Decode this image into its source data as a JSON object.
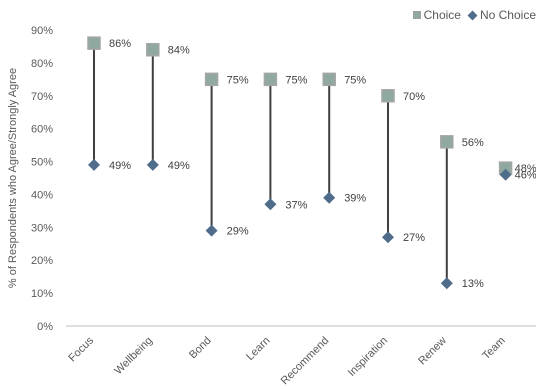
{
  "chart_data": {
    "type": "dumbbell",
    "ylabel": "% of Respondents who Agree/Strongly Agree",
    "ylim": [
      0,
      90
    ],
    "yticks": [
      0,
      10,
      20,
      30,
      40,
      50,
      60,
      70,
      80,
      90
    ],
    "ytick_labels": [
      "0%",
      "10%",
      "20%",
      "30%",
      "40%",
      "50%",
      "60%",
      "70%",
      "80%",
      "90%"
    ],
    "categories": [
      "Focus",
      "Wellbeing",
      "Bond",
      "Learn",
      "Recommend",
      "Inspiration",
      "Renew",
      "Team"
    ],
    "series": [
      {
        "name": "Choice",
        "values": [
          86,
          84,
          75,
          75,
          75,
          70,
          56,
          48
        ],
        "labels": [
          "86%",
          "84%",
          "75%",
          "75%",
          "75%",
          "70%",
          "56%",
          "48%"
        ],
        "color": "#8fa8a0"
      },
      {
        "name": "No Choice",
        "values": [
          49,
          49,
          29,
          37,
          39,
          27,
          13,
          46
        ],
        "labels": [
          "49%",
          "49%",
          "29%",
          "37%",
          "39%",
          "27%",
          "13%",
          "46%"
        ],
        "color": "#4f6d8a"
      }
    ],
    "legend_position": "top-right",
    "grid": false
  }
}
